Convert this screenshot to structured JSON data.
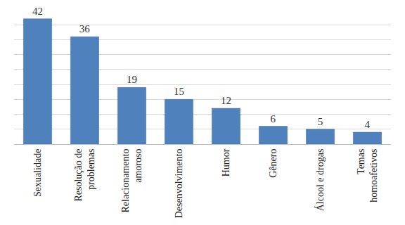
{
  "chart_data": {
    "type": "bar",
    "categories": [
      "Sexualidade",
      "Resolução de problemas",
      "Relacionamento amoroso",
      "Desenvolvimento",
      "Humor",
      "Gênero",
      "Álcool e drogas",
      "Temas homoafetivos"
    ],
    "values": [
      42,
      36,
      19,
      15,
      12,
      6,
      5,
      4
    ],
    "color": "#4f81bd",
    "ylim": [
      0,
      45
    ],
    "yticks": [
      0,
      5,
      10,
      15,
      20,
      25,
      30,
      35,
      40,
      45
    ],
    "grid": true,
    "data_labels": true,
    "tick_labels": "x"
  }
}
